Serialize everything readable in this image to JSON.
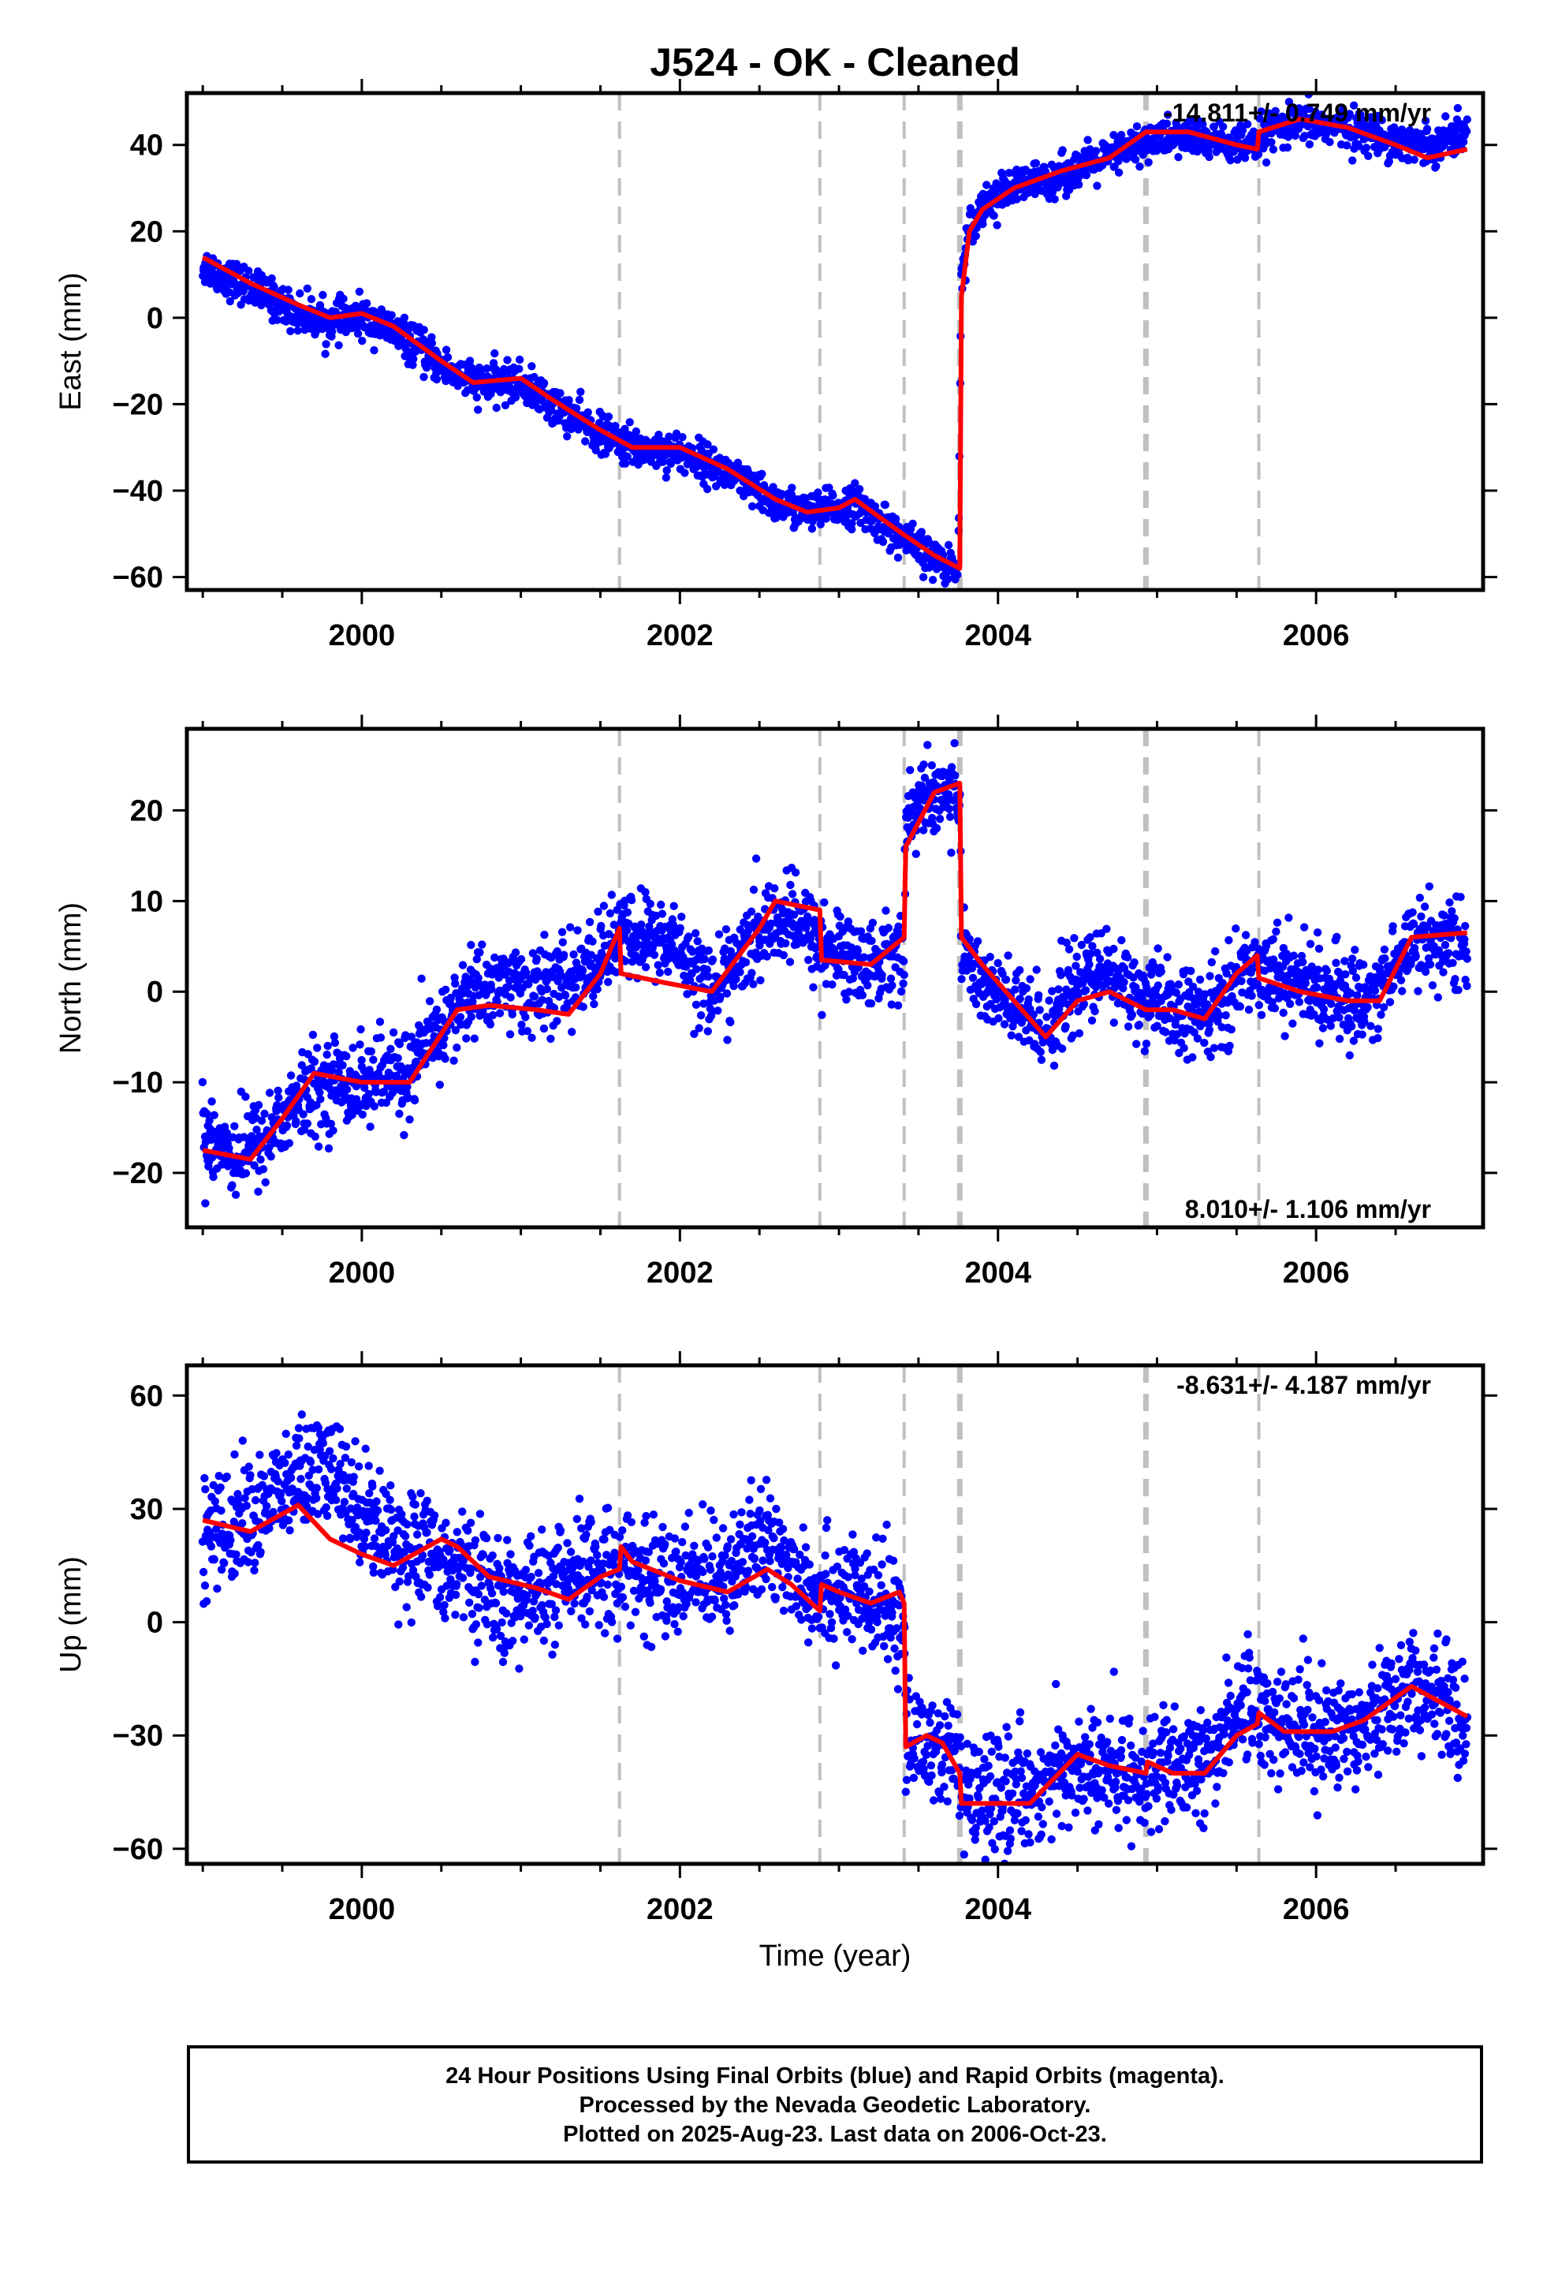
{
  "title": "J524  - OK - Cleaned",
  "xlabel": "Time (year)",
  "footer": {
    "line1": "24 Hour Positions Using Final Orbits (blue) and Rapid Orbits (magenta).",
    "line2": "Processed by the Nevada Geodetic Laboratory.",
    "line3": "Plotted on 2025-Aug-23. Last data on 2006-Oct-23."
  },
  "colors": {
    "final_orbits": "#0000ff",
    "model": "#ff0000",
    "event_lines": "#c0c0c0",
    "frame": "#000000"
  },
  "chart_data": [
    {
      "type": "scatter",
      "ylabel": "East (mm)",
      "rate_label": "-14.811+/- 0.749 mm/yr",
      "rate_position": "top-right",
      "xlim": [
        1998.9,
        2007.05
      ],
      "ylim": [
        -63,
        52
      ],
      "xticks": [
        2000,
        2002,
        2004,
        2006
      ],
      "yticks": [
        -60,
        -40,
        -20,
        0,
        20,
        40
      ],
      "event_lines": [
        2001.62,
        2002.88,
        2003.41,
        2003.76,
        2004.93,
        2005.64
      ],
      "model_curve": [
        [
          1999.0,
          14
        ],
        [
          1999.3,
          8
        ],
        [
          1999.6,
          3
        ],
        [
          1999.8,
          0
        ],
        [
          2000.0,
          1
        ],
        [
          2000.2,
          -2
        ],
        [
          2000.5,
          -10
        ],
        [
          2000.7,
          -15
        ],
        [
          2001.0,
          -14
        ],
        [
          2001.2,
          -19
        ],
        [
          2001.5,
          -26
        ],
        [
          2001.7,
          -30
        ],
        [
          2002.0,
          -30
        ],
        [
          2002.3,
          -35
        ],
        [
          2002.6,
          -42
        ],
        [
          2002.8,
          -45
        ],
        [
          2003.0,
          -44
        ],
        [
          2003.1,
          -42
        ],
        [
          2003.4,
          -50
        ],
        [
          2003.6,
          -55
        ],
        [
          2003.76,
          -58
        ],
        [
          2003.77,
          5
        ],
        [
          2003.82,
          20
        ],
        [
          2003.9,
          25
        ],
        [
          2004.1,
          30
        ],
        [
          2004.4,
          34
        ],
        [
          2004.7,
          37
        ],
        [
          2004.93,
          43
        ],
        [
          2005.2,
          43
        ],
        [
          2005.5,
          40
        ],
        [
          2005.63,
          39
        ],
        [
          2005.64,
          43
        ],
        [
          2005.9,
          46
        ],
        [
          2006.2,
          44
        ],
        [
          2006.5,
          40
        ],
        [
          2006.7,
          37
        ],
        [
          2006.95,
          39
        ]
      ],
      "scatter_trend": [
        [
          1999.0,
          12
        ],
        [
          1999.3,
          7
        ],
        [
          1999.6,
          1
        ],
        [
          1999.8,
          -1
        ],
        [
          2000.0,
          0
        ],
        [
          2000.2,
          -3
        ],
        [
          2000.5,
          -11
        ],
        [
          2000.7,
          -15
        ],
        [
          2001.0,
          -15
        ],
        [
          2001.2,
          -20
        ],
        [
          2001.5,
          -27
        ],
        [
          2001.7,
          -30
        ],
        [
          2002.0,
          -31
        ],
        [
          2002.3,
          -36
        ],
        [
          2002.6,
          -43
        ],
        [
          2002.8,
          -45
        ],
        [
          2003.0,
          -44
        ],
        [
          2003.1,
          -43
        ],
        [
          2003.4,
          -51
        ],
        [
          2003.6,
          -56
        ],
        [
          2003.75,
          -58
        ],
        [
          2003.77,
          10
        ],
        [
          2003.82,
          21
        ],
        [
          2003.9,
          26
        ],
        [
          2004.1,
          30
        ],
        [
          2004.4,
          33
        ],
        [
          2004.7,
          37
        ],
        [
          2004.93,
          41
        ],
        [
          2005.2,
          42
        ],
        [
          2005.5,
          40
        ],
        [
          2005.63,
          39
        ],
        [
          2005.64,
          42
        ],
        [
          2005.9,
          45
        ],
        [
          2006.2,
          44
        ],
        [
          2006.5,
          41
        ],
        [
          2006.7,
          40
        ],
        [
          2006.95,
          43
        ]
      ],
      "scatter_range": [
        1999.0,
        2006.95
      ],
      "scatter_spread": 2.2
    },
    {
      "type": "scatter",
      "ylabel": "North (mm)",
      "rate_label": "8.010+/- 1.106 mm/yr",
      "rate_position": "bottom-right",
      "xlim": [
        1998.9,
        2007.05
      ],
      "ylim": [
        -26,
        29
      ],
      "xticks": [
        2000,
        2002,
        2004,
        2006
      ],
      "yticks": [
        -20,
        -10,
        0,
        10,
        20
      ],
      "event_lines": [
        2001.62,
        2002.88,
        2003.41,
        2003.76,
        2004.93,
        2005.64
      ],
      "model_curve": [
        [
          1999.0,
          -17.5
        ],
        [
          1999.3,
          -18.5
        ],
        [
          1999.5,
          -14
        ],
        [
          1999.7,
          -9
        ],
        [
          2000.0,
          -10
        ],
        [
          2000.3,
          -10
        ],
        [
          2000.6,
          -2
        ],
        [
          2000.8,
          -1.5
        ],
        [
          2001.1,
          -2
        ],
        [
          2001.3,
          -2.5
        ],
        [
          2001.5,
          2
        ],
        [
          2001.62,
          7
        ],
        [
          2001.63,
          2
        ],
        [
          2001.9,
          1
        ],
        [
          2002.2,
          0
        ],
        [
          2002.5,
          7
        ],
        [
          2002.6,
          10
        ],
        [
          2002.88,
          9
        ],
        [
          2002.89,
          3.5
        ],
        [
          2003.2,
          3
        ],
        [
          2003.41,
          6
        ],
        [
          2003.42,
          16
        ],
        [
          2003.6,
          22
        ],
        [
          2003.76,
          23
        ],
        [
          2003.77,
          6
        ],
        [
          2003.9,
          3
        ],
        [
          2004.1,
          -1
        ],
        [
          2004.3,
          -5
        ],
        [
          2004.5,
          -1
        ],
        [
          2004.7,
          0
        ],
        [
          2004.93,
          -2
        ],
        [
          2005.1,
          -2
        ],
        [
          2005.3,
          -3
        ],
        [
          2005.5,
          2
        ],
        [
          2005.63,
          4
        ],
        [
          2005.64,
          1.5
        ],
        [
          2005.9,
          0
        ],
        [
          2006.2,
          -1
        ],
        [
          2006.4,
          -1
        ],
        [
          2006.6,
          6
        ],
        [
          2006.95,
          6.5
        ]
      ],
      "scatter_trend": [
        [
          1999.0,
          -15
        ],
        [
          1999.2,
          -18
        ],
        [
          1999.4,
          -16
        ],
        [
          1999.6,
          -12
        ],
        [
          1999.8,
          -10
        ],
        [
          2000.0,
          -10
        ],
        [
          2000.3,
          -9
        ],
        [
          2000.5,
          -4
        ],
        [
          2000.7,
          0
        ],
        [
          2000.9,
          1
        ],
        [
          2001.1,
          0
        ],
        [
          2001.4,
          2
        ],
        [
          2001.62,
          6
        ],
        [
          2001.8,
          6
        ],
        [
          2002.0,
          5
        ],
        [
          2002.2,
          0
        ],
        [
          2002.4,
          4
        ],
        [
          2002.6,
          8
        ],
        [
          2002.8,
          7
        ],
        [
          2002.88,
          5
        ],
        [
          2003.2,
          3
        ],
        [
          2003.41,
          5
        ],
        [
          2003.42,
          19
        ],
        [
          2003.6,
          22
        ],
        [
          2003.76,
          22
        ],
        [
          2003.77,
          5
        ],
        [
          2003.9,
          1
        ],
        [
          2004.1,
          -2
        ],
        [
          2004.3,
          -4
        ],
        [
          2004.5,
          1
        ],
        [
          2004.7,
          2
        ],
        [
          2004.93,
          -1
        ],
        [
          2005.1,
          -2
        ],
        [
          2005.3,
          -3
        ],
        [
          2005.5,
          1
        ],
        [
          2005.63,
          3
        ],
        [
          2005.9,
          1
        ],
        [
          2006.2,
          -1
        ],
        [
          2006.4,
          0
        ],
        [
          2006.6,
          6
        ],
        [
          2006.95,
          5
        ]
      ],
      "scatter_range": [
        1999.0,
        2006.95
      ],
      "scatter_spread": 2.4
    },
    {
      "type": "scatter",
      "ylabel": "Up (mm)",
      "rate_label": "-8.631+/- 4.187 mm/yr",
      "rate_position": "top-right",
      "xlim": [
        1998.9,
        2007.05
      ],
      "ylim": [
        -64,
        68
      ],
      "xticks": [
        2000,
        2002,
        2004,
        2006
      ],
      "yticks": [
        -60,
        -30,
        0,
        30,
        60
      ],
      "event_lines": [
        2001.62,
        2002.88,
        2003.41,
        2003.76,
        2004.93,
        2005.64
      ],
      "model_curve": [
        [
          1999.0,
          27
        ],
        [
          1999.3,
          24
        ],
        [
          1999.6,
          31
        ],
        [
          1999.8,
          22
        ],
        [
          2000.0,
          18
        ],
        [
          2000.2,
          15
        ],
        [
          2000.5,
          22
        ],
        [
          2000.6,
          20
        ],
        [
          2000.8,
          12
        ],
        [
          2001.1,
          9
        ],
        [
          2001.3,
          6
        ],
        [
          2001.5,
          12
        ],
        [
          2001.62,
          14
        ],
        [
          2001.63,
          20
        ],
        [
          2001.7,
          16
        ],
        [
          2002.0,
          11
        ],
        [
          2002.3,
          8
        ],
        [
          2002.55,
          14
        ],
        [
          2002.7,
          10
        ],
        [
          2002.88,
          3
        ],
        [
          2002.89,
          10
        ],
        [
          2003.0,
          8
        ],
        [
          2003.2,
          5
        ],
        [
          2003.38,
          8
        ],
        [
          2003.41,
          5
        ],
        [
          2003.42,
          -33
        ],
        [
          2003.55,
          -30
        ],
        [
          2003.65,
          -32
        ],
        [
          2003.76,
          -40
        ],
        [
          2003.77,
          -48
        ],
        [
          2004.0,
          -48
        ],
        [
          2004.2,
          -48
        ],
        [
          2004.5,
          -35
        ],
        [
          2004.7,
          -38
        ],
        [
          2004.93,
          -40
        ],
        [
          2004.94,
          -37
        ],
        [
          2005.1,
          -40
        ],
        [
          2005.3,
          -40
        ],
        [
          2005.5,
          -30
        ],
        [
          2005.63,
          -27
        ],
        [
          2005.64,
          -24
        ],
        [
          2005.8,
          -29
        ],
        [
          2006.1,
          -29
        ],
        [
          2006.3,
          -26
        ],
        [
          2006.6,
          -17
        ],
        [
          2006.95,
          -25
        ]
      ],
      "scatter_trend": [
        [
          1999.0,
          22
        ],
        [
          1999.3,
          28
        ],
        [
          1999.6,
          38
        ],
        [
          1999.8,
          40
        ],
        [
          2000.0,
          30
        ],
        [
          2000.2,
          22
        ],
        [
          2000.4,
          18
        ],
        [
          2000.6,
          15
        ],
        [
          2000.9,
          5
        ],
        [
          2001.1,
          8
        ],
        [
          2001.3,
          10
        ],
        [
          2001.5,
          15
        ],
        [
          2001.62,
          15
        ],
        [
          2001.8,
          12
        ],
        [
          2002.0,
          10
        ],
        [
          2002.3,
          15
        ],
        [
          2002.55,
          20
        ],
        [
          2002.7,
          15
        ],
        [
          2002.88,
          8
        ],
        [
          2003.0,
          9
        ],
        [
          2003.2,
          4
        ],
        [
          2003.41,
          3
        ],
        [
          2003.42,
          -32
        ],
        [
          2003.55,
          -32
        ],
        [
          2003.76,
          -37
        ],
        [
          2003.77,
          -48
        ],
        [
          2004.0,
          -45
        ],
        [
          2004.2,
          -45
        ],
        [
          2004.5,
          -38
        ],
        [
          2004.7,
          -40
        ],
        [
          2004.93,
          -40
        ],
        [
          2005.1,
          -40
        ],
        [
          2005.3,
          -38
        ],
        [
          2005.5,
          -22
        ],
        [
          2005.63,
          -23
        ],
        [
          2005.8,
          -27
        ],
        [
          2006.1,
          -30
        ],
        [
          2006.3,
          -25
        ],
        [
          2006.6,
          -17
        ],
        [
          2006.95,
          -25
        ]
      ],
      "scatter_range": [
        1999.0,
        2006.95
      ],
      "scatter_spread": 7.5
    }
  ]
}
